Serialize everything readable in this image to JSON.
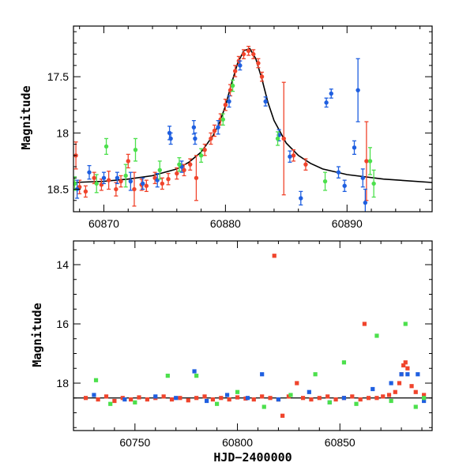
{
  "chart_data": [
    {
      "type": "scatter",
      "ylabel": "Magnitude",
      "xlabel": "",
      "xlim": [
        60867.5,
        60897
      ],
      "ylim": [
        18.7,
        17.05
      ],
      "inverted_y": true,
      "xticks": [
        60870,
        60880,
        60890
      ],
      "yticks": [
        17.5,
        18,
        18.5
      ],
      "colors": {
        "red": "#f0442c",
        "blue": "#1f5fe0",
        "green": "#4ce04c",
        "model": "#000000"
      },
      "model_curve": {
        "name": "",
        "x": [
          60867.5,
          60870,
          60872,
          60874,
          60876,
          60877,
          60878,
          60879,
          60879.5,
          60880,
          60880.5,
          60881,
          60881.5,
          60882,
          60882.5,
          60883,
          60883.5,
          60884,
          60885,
          60886,
          60887,
          60888,
          60890,
          60893,
          60897
        ],
        "y": [
          18.44,
          18.43,
          18.41,
          18.38,
          18.32,
          18.26,
          18.17,
          18.02,
          17.91,
          17.76,
          17.56,
          17.38,
          17.27,
          17.25,
          17.34,
          17.52,
          17.73,
          17.89,
          18.09,
          18.2,
          18.27,
          18.32,
          18.37,
          18.41,
          18.44
        ]
      },
      "series": [
        {
          "color": "red",
          "points": [
            {
              "x": 60867.7,
              "y": 18.2,
              "err": 0.12
            },
            {
              "x": 60868.0,
              "y": 18.48,
              "err": 0.06
            },
            {
              "x": 60868.5,
              "y": 18.52,
              "err": 0.05
            },
            {
              "x": 60869.2,
              "y": 18.4,
              "err": 0.05
            },
            {
              "x": 60869.8,
              "y": 18.46,
              "err": 0.05
            },
            {
              "x": 60870.4,
              "y": 18.42,
              "err": 0.08
            },
            {
              "x": 60871.0,
              "y": 18.5,
              "err": 0.06
            },
            {
              "x": 60871.4,
              "y": 18.43,
              "err": 0.05
            },
            {
              "x": 60872.0,
              "y": 18.25,
              "err": 0.06
            },
            {
              "x": 60872.5,
              "y": 18.5,
              "err": 0.15
            },
            {
              "x": 60873.1,
              "y": 18.46,
              "err": 0.05
            },
            {
              "x": 60873.5,
              "y": 18.47,
              "err": 0.05
            },
            {
              "x": 60874.2,
              "y": 18.4,
              "err": 0.05
            },
            {
              "x": 60874.8,
              "y": 18.45,
              "err": 0.05
            },
            {
              "x": 60875.3,
              "y": 18.41,
              "err": 0.05
            },
            {
              "x": 60876.0,
              "y": 18.36,
              "err": 0.05
            },
            {
              "x": 60876.6,
              "y": 18.33,
              "err": 0.05
            },
            {
              "x": 60877.1,
              "y": 18.28,
              "err": 0.05
            },
            {
              "x": 60877.6,
              "y": 18.4,
              "err": 0.2
            },
            {
              "x": 60878.3,
              "y": 18.15,
              "err": 0.05
            },
            {
              "x": 60878.8,
              "y": 18.05,
              "err": 0.05
            },
            {
              "x": 60879.1,
              "y": 17.98,
              "err": 0.05
            },
            {
              "x": 60879.6,
              "y": 17.88,
              "err": 0.05
            },
            {
              "x": 60880.0,
              "y": 17.75,
              "err": 0.05
            },
            {
              "x": 60880.4,
              "y": 17.62,
              "err": 0.05
            },
            {
              "x": 60880.8,
              "y": 17.45,
              "err": 0.05
            },
            {
              "x": 60881.1,
              "y": 17.36,
              "err": 0.04
            },
            {
              "x": 60881.5,
              "y": 17.3,
              "err": 0.04
            },
            {
              "x": 60881.9,
              "y": 17.27,
              "err": 0.04
            },
            {
              "x": 60882.3,
              "y": 17.3,
              "err": 0.04
            },
            {
              "x": 60882.7,
              "y": 17.38,
              "err": 0.04
            },
            {
              "x": 60883.0,
              "y": 17.5,
              "err": 0.04
            },
            {
              "x": 60884.8,
              "y": 18.05,
              "err": 0.5
            },
            {
              "x": 60885.6,
              "y": 18.2,
              "err": 0.05
            },
            {
              "x": 60886.6,
              "y": 18.28,
              "err": 0.05
            },
            {
              "x": 60891.6,
              "y": 18.25,
              "err": 0.35
            }
          ]
        },
        {
          "color": "blue",
          "points": [
            {
              "x": 60867.8,
              "y": 18.5,
              "err": 0.08
            },
            {
              "x": 60868.8,
              "y": 18.35,
              "err": 0.06
            },
            {
              "x": 60870.0,
              "y": 18.4,
              "err": 0.05
            },
            {
              "x": 60871.1,
              "y": 18.4,
              "err": 0.05
            },
            {
              "x": 60872.2,
              "y": 18.43,
              "err": 0.08
            },
            {
              "x": 60873.2,
              "y": 18.45,
              "err": 0.05
            },
            {
              "x": 60874.4,
              "y": 18.42,
              "err": 0.06
            },
            {
              "x": 60875.4,
              "y": 18.0,
              "err": 0.06
            },
            {
              "x": 60875.5,
              "y": 18.05,
              "err": 0.05
            },
            {
              "x": 60876.4,
              "y": 18.3,
              "err": 0.05
            },
            {
              "x": 60877.4,
              "y": 17.95,
              "err": 0.06
            },
            {
              "x": 60877.5,
              "y": 18.05,
              "err": 0.05
            },
            {
              "x": 60879.4,
              "y": 17.95,
              "err": 0.06
            },
            {
              "x": 60880.3,
              "y": 17.72,
              "err": 0.05
            },
            {
              "x": 60881.2,
              "y": 17.4,
              "err": 0.04
            },
            {
              "x": 60883.3,
              "y": 17.72,
              "err": 0.04
            },
            {
              "x": 60884.4,
              "y": 18.02,
              "err": 0.05
            },
            {
              "x": 60885.3,
              "y": 18.21,
              "err": 0.05
            },
            {
              "x": 60886.2,
              "y": 18.58,
              "err": 0.06
            },
            {
              "x": 60888.3,
              "y": 17.73,
              "err": 0.04
            },
            {
              "x": 60888.7,
              "y": 17.65,
              "err": 0.04
            },
            {
              "x": 60889.3,
              "y": 18.35,
              "err": 0.05
            },
            {
              "x": 60889.8,
              "y": 18.47,
              "err": 0.05
            },
            {
              "x": 60890.6,
              "y": 18.13,
              "err": 0.06
            },
            {
              "x": 60890.9,
              "y": 17.62,
              "err": 0.28
            },
            {
              "x": 60891.3,
              "y": 18.4,
              "err": 0.08
            },
            {
              "x": 60891.5,
              "y": 18.62,
              "err": 0.12
            }
          ]
        },
        {
          "color": "green",
          "points": [
            {
              "x": 60867.6,
              "y": 18.45,
              "err": 0.06
            },
            {
              "x": 60869.4,
              "y": 18.45,
              "err": 0.08
            },
            {
              "x": 60870.2,
              "y": 18.12,
              "err": 0.07
            },
            {
              "x": 60871.8,
              "y": 18.38,
              "err": 0.1
            },
            {
              "x": 60872.6,
              "y": 18.15,
              "err": 0.1
            },
            {
              "x": 60874.6,
              "y": 18.33,
              "err": 0.08
            },
            {
              "x": 60876.2,
              "y": 18.28,
              "err": 0.06
            },
            {
              "x": 60878.0,
              "y": 18.2,
              "err": 0.06
            },
            {
              "x": 60879.8,
              "y": 17.88,
              "err": 0.05
            },
            {
              "x": 60880.6,
              "y": 17.58,
              "err": 0.05
            },
            {
              "x": 60884.3,
              "y": 18.05,
              "err": 0.06
            },
            {
              "x": 60888.2,
              "y": 18.43,
              "err": 0.08
            },
            {
              "x": 60891.9,
              "y": 18.25,
              "err": 0.12
            },
            {
              "x": 60892.2,
              "y": 18.45,
              "err": 0.12
            }
          ]
        }
      ]
    },
    {
      "type": "scatter",
      "ylabel": "Magnitude",
      "xlabel": "HJD−2400000",
      "xlim": [
        60720,
        60895
      ],
      "ylim": [
        19.6,
        13.2
      ],
      "inverted_y": true,
      "xticks": [
        60750,
        60800,
        60850
      ],
      "yticks": [
        14,
        16,
        18
      ],
      "baseline_y": 18.5,
      "colors": {
        "red": "#f0442c",
        "blue": "#1f5fe0",
        "green": "#4ce04c",
        "model": "#000000"
      },
      "series": [
        {
          "color": "red",
          "points": [
            {
              "x": 60726,
              "y": 18.5
            },
            {
              "x": 60732,
              "y": 18.55
            },
            {
              "x": 60736,
              "y": 18.45
            },
            {
              "x": 60740,
              "y": 18.6
            },
            {
              "x": 60744,
              "y": 18.5
            },
            {
              "x": 60748,
              "y": 18.55
            },
            {
              "x": 60752,
              "y": 18.48
            },
            {
              "x": 60756,
              "y": 18.55
            },
            {
              "x": 60760,
              "y": 18.5
            },
            {
              "x": 60764,
              "y": 18.45
            },
            {
              "x": 60768,
              "y": 18.55
            },
            {
              "x": 60772,
              "y": 18.5
            },
            {
              "x": 60776,
              "y": 18.58
            },
            {
              "x": 60780,
              "y": 18.5
            },
            {
              "x": 60784,
              "y": 18.45
            },
            {
              "x": 60788,
              "y": 18.55
            },
            {
              "x": 60792,
              "y": 18.5
            },
            {
              "x": 60796,
              "y": 18.55
            },
            {
              "x": 60800,
              "y": 18.48
            },
            {
              "x": 60804,
              "y": 18.52
            },
            {
              "x": 60808,
              "y": 18.55
            },
            {
              "x": 60812,
              "y": 18.45
            },
            {
              "x": 60816,
              "y": 18.5
            },
            {
              "x": 60818,
              "y": 13.7
            },
            {
              "x": 60820,
              "y": 18.55
            },
            {
              "x": 60822,
              "y": 19.1
            },
            {
              "x": 60825,
              "y": 18.45
            },
            {
              "x": 60829,
              "y": 18.0
            },
            {
              "x": 60832,
              "y": 18.5
            },
            {
              "x": 60836,
              "y": 18.55
            },
            {
              "x": 60840,
              "y": 18.5
            },
            {
              "x": 60844,
              "y": 18.45
            },
            {
              "x": 60848,
              "y": 18.55
            },
            {
              "x": 60852,
              "y": 18.5
            },
            {
              "x": 60856,
              "y": 18.45
            },
            {
              "x": 60860,
              "y": 18.55
            },
            {
              "x": 60862,
              "y": 16.0
            },
            {
              "x": 60864,
              "y": 18.5
            },
            {
              "x": 60868,
              "y": 18.5
            },
            {
              "x": 60871,
              "y": 18.45
            },
            {
              "x": 60874,
              "y": 18.4
            },
            {
              "x": 60877,
              "y": 18.3
            },
            {
              "x": 60879,
              "y": 18.0
            },
            {
              "x": 60880,
              "y": 17.7
            },
            {
              "x": 60881,
              "y": 17.4
            },
            {
              "x": 60882,
              "y": 17.3
            },
            {
              "x": 60883,
              "y": 17.5
            },
            {
              "x": 60885,
              "y": 18.1
            },
            {
              "x": 60887,
              "y": 18.3
            },
            {
              "x": 60891,
              "y": 18.4
            }
          ]
        },
        {
          "color": "blue",
          "points": [
            {
              "x": 60730,
              "y": 18.4
            },
            {
              "x": 60745,
              "y": 18.55
            },
            {
              "x": 60760,
              "y": 18.45
            },
            {
              "x": 60770,
              "y": 18.5
            },
            {
              "x": 60779,
              "y": 17.6
            },
            {
              "x": 60785,
              "y": 18.6
            },
            {
              "x": 60795,
              "y": 18.4
            },
            {
              "x": 60805,
              "y": 18.5
            },
            {
              "x": 60812,
              "y": 17.7
            },
            {
              "x": 60820,
              "y": 18.55
            },
            {
              "x": 60835,
              "y": 18.3
            },
            {
              "x": 60845,
              "y": 18.65
            },
            {
              "x": 60852,
              "y": 18.5
            },
            {
              "x": 60866,
              "y": 18.2
            },
            {
              "x": 60875,
              "y": 18.0
            },
            {
              "x": 60880,
              "y": 17.7
            },
            {
              "x": 60883,
              "y": 17.7
            },
            {
              "x": 60888,
              "y": 17.7
            },
            {
              "x": 60891,
              "y": 18.6
            }
          ]
        },
        {
          "color": "green",
          "points": [
            {
              "x": 60731,
              "y": 17.9
            },
            {
              "x": 60738,
              "y": 18.7
            },
            {
              "x": 60750,
              "y": 18.65
            },
            {
              "x": 60766,
              "y": 17.75
            },
            {
              "x": 60780,
              "y": 17.75
            },
            {
              "x": 60790,
              "y": 18.7
            },
            {
              "x": 60800,
              "y": 18.3
            },
            {
              "x": 60813,
              "y": 18.8
            },
            {
              "x": 60826,
              "y": 18.4
            },
            {
              "x": 60838,
              "y": 17.7
            },
            {
              "x": 60845,
              "y": 18.65
            },
            {
              "x": 60852,
              "y": 17.3
            },
            {
              "x": 60858,
              "y": 18.7
            },
            {
              "x": 60868,
              "y": 16.4
            },
            {
              "x": 60875,
              "y": 18.6
            },
            {
              "x": 60882,
              "y": 16.0
            },
            {
              "x": 60887,
              "y": 18.8
            },
            {
              "x": 60891,
              "y": 18.5
            }
          ]
        }
      ]
    }
  ]
}
